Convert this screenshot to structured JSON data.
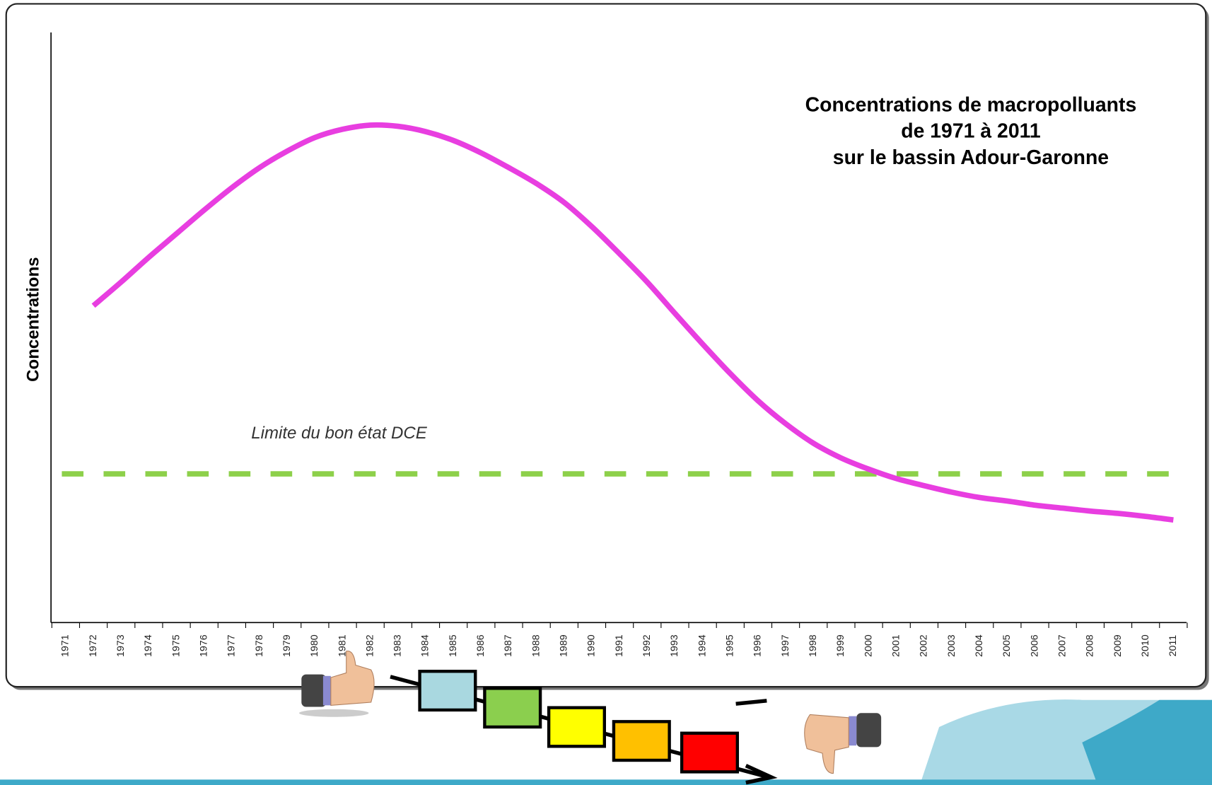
{
  "chart_data": {
    "type": "line",
    "title": [
      "Concentrations de macropolluants",
      "de 1971 à 2011",
      "sur le bassin Adour-Garonne"
    ],
    "y_label": "Concentrations",
    "categories": [
      "1971",
      "1972",
      "1973",
      "1974",
      "1975",
      "1976",
      "1977",
      "1978",
      "1979",
      "1980",
      "1981",
      "1982",
      "1983",
      "1984",
      "1985",
      "1986",
      "1987",
      "1988",
      "1989",
      "1990",
      "1991",
      "1992",
      "1993",
      "1994",
      "1995",
      "1996",
      "1997",
      "1998",
      "1999",
      "2000",
      "2001",
      "2002",
      "2003",
      "2004",
      "2005",
      "2006",
      "2007",
      "2008",
      "2009",
      "2010",
      "2011"
    ],
    "series": [
      {
        "color": "#e83ee0",
        "values": [
          null,
          53.7,
          57.7,
          61.9,
          65.9,
          69.9,
          73.7,
          77.1,
          79.9,
          82.2,
          83.6,
          84.3,
          84.1,
          83.2,
          81.7,
          79.6,
          77.1,
          74.4,
          71.2,
          67.1,
          62.5,
          57.7,
          52.4,
          47.2,
          42.2,
          37.6,
          33.7,
          30.4,
          27.9,
          26.0,
          24.4,
          23.2,
          22.1,
          21.2,
          20.6,
          19.9,
          19.4,
          18.9,
          18.5,
          18.0,
          17.4
        ]
      }
    ],
    "ylim": [
      0,
      100
    ],
    "threshold": {
      "label": "Limite du bon état DCE",
      "value": 25.2,
      "color": "#8dd04a"
    }
  }
}
